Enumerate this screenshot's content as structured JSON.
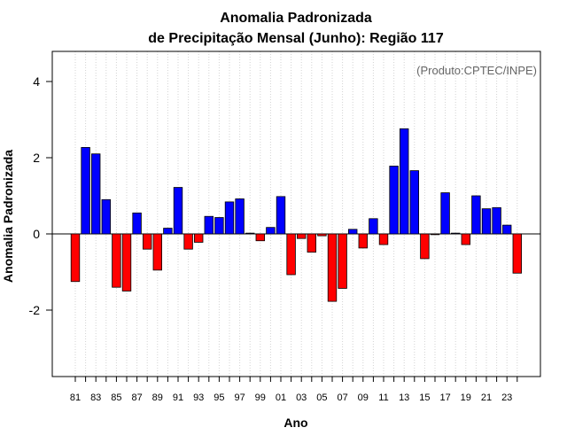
{
  "chart_data": {
    "type": "bar",
    "title_line1": "Anomalia Padronizada",
    "title_line2": "de Precipitação Mensal (Junho): Região 117",
    "xlabel": "Ano",
    "ylabel": "Anomalia Padronizada",
    "annotation": "(Produto:CPTEC/INPE)",
    "ylim": [
      -3.8,
      4.8
    ],
    "yticks": [
      -2,
      0,
      2,
      4
    ],
    "ytick_labels": [
      "-2",
      "0",
      "2",
      "4"
    ],
    "grid": "vertical dotted",
    "positive_color": "#0000ff",
    "negative_color": "#ff0000",
    "categories": [
      "81",
      "82",
      "83",
      "84",
      "85",
      "86",
      "87",
      "88",
      "89",
      "90",
      "91",
      "92",
      "93",
      "94",
      "95",
      "96",
      "97",
      "98",
      "99",
      "00",
      "01",
      "02",
      "03",
      "04",
      "05",
      "06",
      "07",
      "08",
      "09",
      "10",
      "11",
      "12",
      "13",
      "14",
      "15",
      "16",
      "17",
      "18",
      "19",
      "20",
      "21",
      "22",
      "23",
      "24"
    ],
    "tick_labels": [
      "81",
      "",
      "83",
      "",
      "85",
      "",
      "87",
      "",
      "89",
      "",
      "91",
      "",
      "93",
      "",
      "95",
      "",
      "97",
      "",
      "99",
      "",
      "01",
      "",
      "03",
      "",
      "05",
      "",
      "07",
      "",
      "09",
      "",
      "11",
      "",
      "13",
      "",
      "15",
      "",
      "17",
      "",
      "19",
      "",
      "21",
      "",
      "23",
      ""
    ],
    "values": [
      -1.25,
      2.27,
      2.1,
      0.9,
      -1.4,
      -1.5,
      0.55,
      -0.4,
      -0.95,
      0.15,
      1.22,
      -0.4,
      -0.22,
      0.46,
      0.43,
      0.84,
      0.92,
      0.02,
      -0.18,
      0.17,
      0.98,
      -1.07,
      -0.12,
      -0.48,
      -0.05,
      -1.77,
      -1.43,
      0.12,
      -0.37,
      0.4,
      -0.28,
      1.78,
      2.76,
      1.66,
      -0.65,
      -0.02,
      1.08,
      0.02,
      -0.28,
      1.0,
      0.66,
      0.69,
      0.23,
      -1.03
    ]
  }
}
